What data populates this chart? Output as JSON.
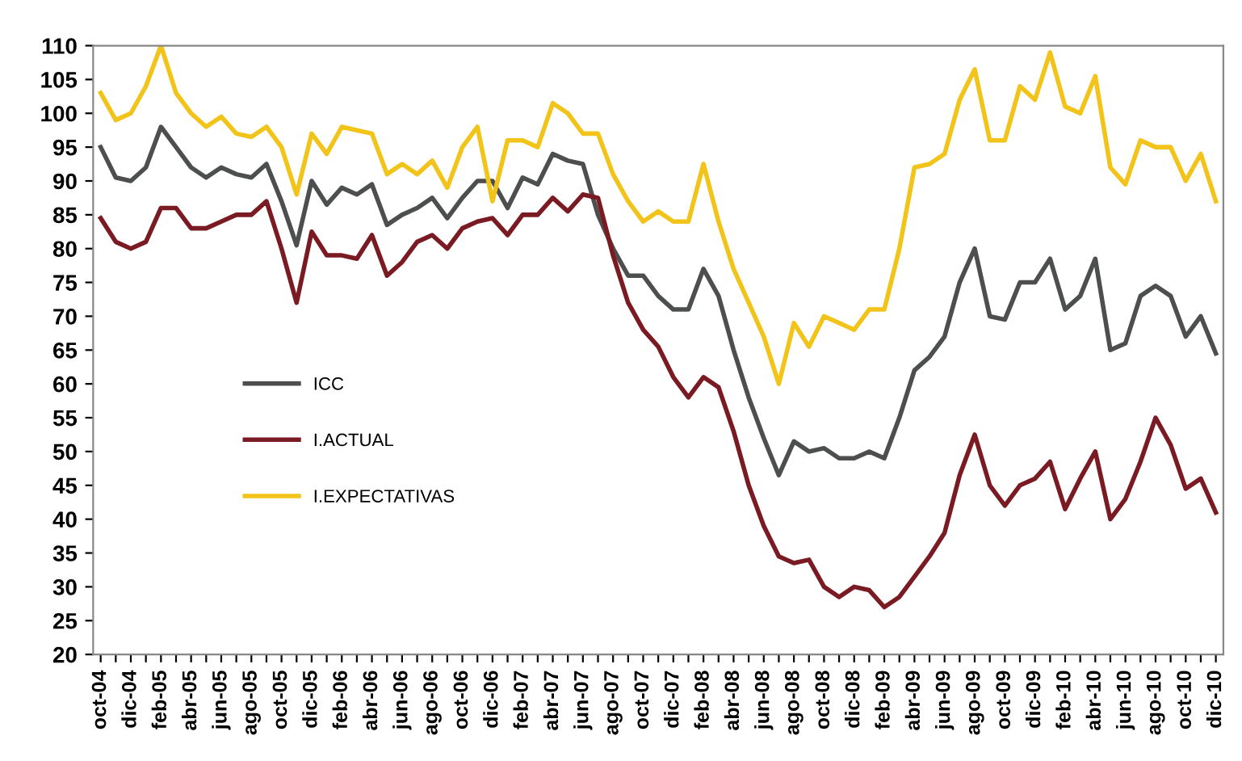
{
  "chart_data": {
    "type": "line",
    "categories": [
      "oct-04",
      null,
      "dic-04",
      null,
      "feb-05",
      null,
      "abr-05",
      null,
      "jun-05",
      null,
      "ago-05",
      null,
      "oct-05",
      null,
      "dic-05",
      null,
      "feb-06",
      null,
      "abr-06",
      null,
      "jun-06",
      null,
      "ago-06",
      null,
      "oct-06",
      null,
      "dic-06",
      null,
      "feb-07",
      null,
      "abr-07",
      null,
      "jun-07",
      null,
      "ago-07",
      null,
      "oct-07",
      null,
      "dic-07",
      null,
      "feb-08",
      null,
      "abr-08",
      null,
      "jun-08",
      null,
      "ago-08",
      null,
      "oct-08",
      null,
      "dic-08",
      null,
      "feb-09",
      null,
      "abr-09",
      null,
      "jun-09",
      null,
      "ago-09",
      null,
      "oct-09",
      null,
      "dic-09",
      null,
      "feb-10",
      null,
      "abr-10",
      null,
      "jun-10",
      null,
      "ago-10",
      null,
      "oct-10",
      null,
      "dic-10"
    ],
    "series": [
      {
        "name": "ICC",
        "color": "#4d4f4f",
        "values": [
          95,
          90.5,
          90,
          92,
          98,
          95,
          92,
          90.5,
          92,
          91,
          90.5,
          92.5,
          87,
          80.5,
          90,
          86.5,
          89,
          88,
          89.5,
          83.5,
          85,
          86,
          87.5,
          84.5,
          87.5,
          90,
          90,
          86,
          90.5,
          89.5,
          94,
          93,
          92.5,
          85,
          80,
          76,
          76,
          73,
          71,
          71,
          77,
          73,
          65,
          58,
          52,
          46.5,
          51.5,
          50,
          50.5,
          49,
          49,
          50,
          49,
          55,
          62,
          64,
          67,
          75,
          80,
          70,
          69.5,
          75,
          75,
          78.5,
          71,
          73,
          78.5,
          65,
          66,
          73,
          74.5,
          73,
          67,
          70,
          64.5
        ]
      },
      {
        "name": "I.ACTUAL",
        "color": "#7a1a22",
        "values": [
          84.5,
          81,
          80,
          81,
          86,
          86,
          83,
          83,
          84,
          85,
          85,
          87,
          80,
          72,
          82.5,
          79,
          79,
          78.5,
          82,
          76,
          78,
          81,
          82,
          80,
          83,
          84,
          84.5,
          82,
          85,
          85,
          87.5,
          85.5,
          88,
          87.5,
          79,
          72,
          68,
          65.5,
          61,
          58,
          61,
          59.5,
          53,
          45,
          39,
          34.5,
          33.5,
          34,
          30,
          28.5,
          30,
          29.5,
          27,
          28.5,
          31.5,
          34.5,
          38,
          46.5,
          52.5,
          45,
          42,
          45,
          46,
          48.5,
          41.5,
          46,
          50,
          40,
          43,
          48.5,
          55,
          51,
          44.5,
          46,
          41
        ]
      },
      {
        "name": "I.EXPECTATIVAS",
        "color": "#f2c318",
        "values": [
          103,
          99,
          100,
          104,
          110,
          103,
          100,
          98,
          99.5,
          97,
          96.5,
          98,
          95,
          88,
          97,
          94,
          98,
          97.5,
          97,
          91,
          92.5,
          91,
          93,
          89,
          95,
          98,
          87,
          96,
          96,
          95,
          101.5,
          100,
          97,
          97,
          91,
          87,
          84,
          85.5,
          84,
          84,
          92.5,
          84,
          77,
          72,
          67,
          60,
          69,
          65.5,
          70,
          69,
          68,
          71,
          71,
          80,
          92,
          92.5,
          94,
          102,
          106.5,
          96,
          96,
          104,
          102,
          109,
          101,
          100,
          105.5,
          92,
          89.5,
          96,
          95,
          95,
          90,
          94,
          87
        ]
      }
    ],
    "ylim": [
      20,
      110
    ],
    "yticks": [
      20,
      25,
      30,
      35,
      40,
      45,
      50,
      55,
      60,
      65,
      70,
      75,
      80,
      85,
      90,
      95,
      100,
      105,
      110
    ],
    "legend": "left",
    "grid": false,
    "marker": "none",
    "line_style": "solid"
  }
}
